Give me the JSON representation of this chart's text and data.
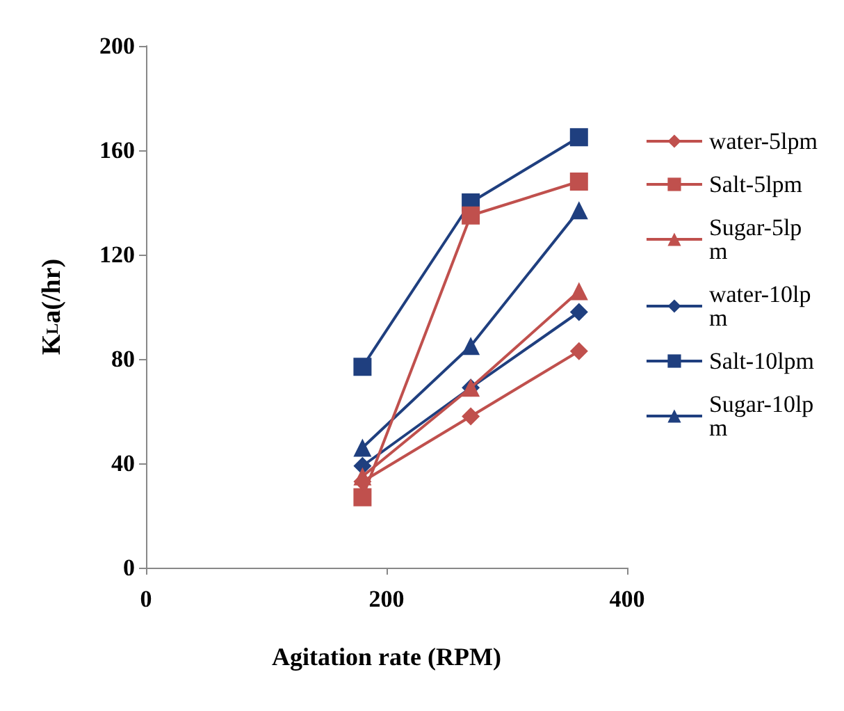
{
  "chart_data": {
    "type": "line",
    "xlabel": "Agitation rate (RPM)",
    "ylabel": "K$_{L}$a(/hr)",
    "xlim": [
      0,
      400
    ],
    "xticks": [
      0,
      200,
      400
    ],
    "ylim": [
      0,
      200
    ],
    "yticks": [
      0,
      40,
      80,
      120,
      160,
      200
    ],
    "grid": false,
    "legend": "right",
    "x": [
      180,
      270,
      360
    ],
    "series": [
      {
        "name": "water-5lpm",
        "color": "#c0504d",
        "marker": "diamond",
        "values": [
          33,
          58,
          83
        ]
      },
      {
        "name": "Salt-5lpm",
        "color": "#c0504d",
        "marker": "square",
        "values": [
          27,
          135,
          148
        ]
      },
      {
        "name": "Sugar-5lpm",
        "color": "#c0504d",
        "marker": "triangle",
        "values": [
          35,
          69,
          106
        ]
      },
      {
        "name": "water-10lpm",
        "color": "#1f3f7f",
        "marker": "diamond",
        "values": [
          39,
          69,
          98
        ]
      },
      {
        "name": "Salt-10lpm",
        "color": "#1f3f7f",
        "marker": "square",
        "values": [
          77,
          140,
          165
        ]
      },
      {
        "name": "Sugar-10lpm",
        "color": "#1f3f7f",
        "marker": "triangle",
        "values": [
          46,
          85,
          137
        ]
      }
    ]
  }
}
